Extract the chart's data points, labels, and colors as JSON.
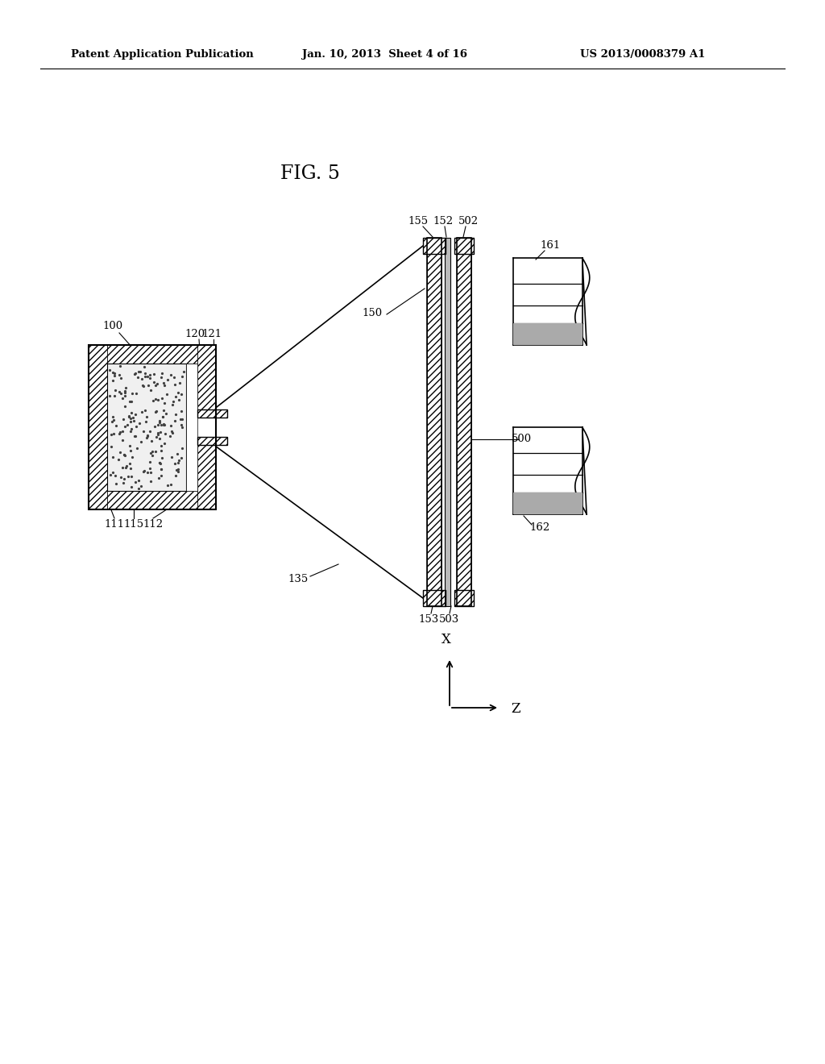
{
  "bg_color": "#ffffff",
  "header_left": "Patent Application Publication",
  "header_mid": "Jan. 10, 2013  Sheet 4 of 16",
  "header_right": "US 2013/0008379 A1",
  "fig_label": "FIG. 5"
}
